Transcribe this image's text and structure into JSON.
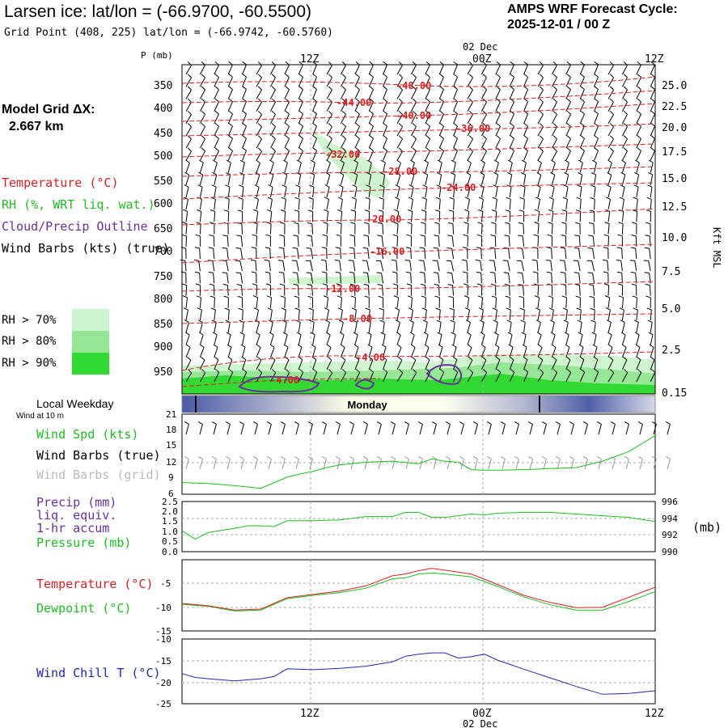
{
  "header": {
    "title": "Larsen ice:  lat/lon = (-66.9700, -60.5500)",
    "grid_point": "Grid Point (408, 225) lat/lon = (-66.9742, -60.5760)",
    "cycle_title": "AMPS WRF Forecast Cycle:",
    "cycle_value": "2025-12-01 / 00  Z"
  },
  "model_grid": {
    "label": "Model Grid ΔX:",
    "value": "2.667 km"
  },
  "legend": {
    "temperature": "Temperature (°C)",
    "rh": "RH (%, WRT liq. wat.)",
    "cloud": "Cloud/Precip Outline",
    "wind_barbs": "Wind Barbs (kts) (true)",
    "rh70": "RH > 70%",
    "rh80": "RH > 80%",
    "rh90": "RH > 90%",
    "local_weekday": "Local Weekday",
    "wind_10m": "Wind at 10 m",
    "wind_spd": "Wind Spd (kts)",
    "barbs_true": "Wind Barbs (true)",
    "barbs_grid": "Wind Barbs (grid)",
    "precip1": "Precip (mm)",
    "precip2": "liq. equiv.",
    "precip3": "1-hr accum",
    "pressure": "Pressure (mb)",
    "temp2": "Temperature (°C)",
    "dewpoint": "Dewpoint (°C)",
    "windchill": "Wind Chill T (°C)",
    "mb": "(mb)"
  },
  "colors": {
    "temperature": "#d62222",
    "rh_line": "#22bb22",
    "cloud": "#6a2f9b",
    "windchill": "#1f2aa8",
    "rh70": "#cff5cf",
    "rh80": "#95e695",
    "rh90": "#33d933"
  },
  "chart_data": [
    {
      "type": "contour",
      "title": "Time-height cross section",
      "y_axis_label": "P (mb)",
      "y_ticks": [
        "350",
        "400",
        "450",
        "500",
        "550",
        "600",
        "650",
        "700",
        "750",
        "800",
        "850",
        "900",
        "950"
      ],
      "right_axis_label": "Kft MSL",
      "right_ticks": [
        "25.0",
        "22.5",
        "20.0",
        "17.5",
        "15.0",
        "12.5",
        "10.0",
        "7.5",
        "5.0",
        "2.5",
        "0.15"
      ],
      "x_ticks_top": [
        "12Z",
        "00Z",
        "12Z"
      ],
      "date_label": "02 Dec",
      "temperature_labels": [
        "-48.00",
        "-44.00",
        "-40.00",
        "-36.00",
        "-32.00",
        "-28.00",
        "-24.00",
        "-20.00",
        "-16.00",
        "-12.00",
        "-8.00",
        "-4.00",
        "-4.00"
      ]
    },
    {
      "type": "bar",
      "title": "Local Weekday",
      "day_label": "Monday"
    },
    {
      "type": "line",
      "title": "Wind at 10 m",
      "y_ticks": [
        "21",
        "18",
        "15",
        "12",
        "9",
        "6"
      ],
      "ylim": [
        6,
        21
      ],
      "series": [
        {
          "name": "Wind Spd (kts)",
          "x": [
            0,
            2,
            4,
            6,
            8,
            9,
            10,
            11,
            12,
            14,
            16,
            18,
            19,
            20,
            21,
            22,
            23,
            24,
            26,
            28,
            30,
            32,
            34,
            36
          ],
          "values": [
            8.2,
            8.0,
            7.6,
            7.1,
            9.2,
            9.8,
            10.3,
            11.0,
            11.5,
            12.0,
            12.2,
            11.7,
            12.6,
            12.2,
            12.0,
            10.6,
            10.5,
            10.5,
            10.6,
            10.8,
            11.0,
            12.2,
            14.0,
            17.0
          ]
        }
      ]
    },
    {
      "type": "line",
      "title": "Precip / Pressure",
      "y_ticks_left": [
        "2.5",
        "2.0",
        "1.5",
        "1.0",
        "0.5",
        "0.0"
      ],
      "y_ticks_right": [
        "996",
        "994",
        "992",
        "990"
      ],
      "ylim_left": [
        0,
        2.5
      ],
      "ylim_right": [
        990,
        996
      ],
      "precip_mm": [],
      "series": [
        {
          "name": "Pressure (mb)",
          "x": [
            0,
            1,
            2,
            4,
            5,
            6,
            7,
            8,
            9,
            10,
            12,
            14,
            15,
            16,
            17,
            18,
            19,
            20,
            21,
            22,
            23,
            24,
            26,
            28,
            30,
            32,
            34,
            36
          ],
          "values": [
            992.5,
            991.5,
            992.3,
            992.8,
            993.1,
            993.1,
            993.0,
            993.7,
            993.7,
            993.7,
            993.8,
            994.2,
            994.2,
            994.2,
            994.7,
            994.7,
            994.1,
            994.1,
            994.3,
            994.5,
            994.4,
            994.6,
            994.7,
            994.7,
            994.5,
            994.3,
            994.1,
            993.6
          ]
        }
      ]
    },
    {
      "type": "line",
      "title": "Temperature / Dewpoint",
      "y_ticks": [
        "-5",
        "-10",
        "-15"
      ],
      "ylim": [
        -15,
        0
      ],
      "series": [
        {
          "name": "Temperature (°C)",
          "x": [
            0,
            2,
            4,
            6,
            8,
            10,
            12,
            14,
            16,
            17,
            18,
            19,
            20,
            22,
            24,
            26,
            28,
            30,
            32,
            34,
            36
          ],
          "values": [
            -9.2,
            -9.7,
            -10.6,
            -10.4,
            -8.0,
            -7.3,
            -6.6,
            -5.5,
            -3.4,
            -3.0,
            -2.3,
            -1.8,
            -2.2,
            -3.0,
            -5.2,
            -7.5,
            -9.0,
            -10.1,
            -10.0,
            -7.9,
            -5.8
          ]
        },
        {
          "name": "Dewpoint (°C)",
          "x": [
            0,
            2,
            4,
            6,
            8,
            10,
            12,
            14,
            16,
            17,
            18,
            19,
            20,
            22,
            24,
            26,
            28,
            30,
            32,
            34,
            36
          ],
          "values": [
            -9.4,
            -9.8,
            -10.8,
            -10.6,
            -8.2,
            -7.5,
            -6.9,
            -6.0,
            -4.0,
            -3.8,
            -3.0,
            -2.8,
            -3.0,
            -3.6,
            -5.6,
            -7.8,
            -9.5,
            -10.6,
            -10.6,
            -8.8,
            -6.7
          ]
        }
      ]
    },
    {
      "type": "line",
      "title": "Wind Chill",
      "y_ticks": [
        "-10",
        "-15",
        "-20",
        "-25"
      ],
      "ylim": [
        -25,
        -10
      ],
      "x_ticks_bottom": [
        "12Z",
        "00Z",
        "12Z"
      ],
      "series": [
        {
          "name": "Wind Chill T (°C)",
          "x": [
            0,
            1,
            2,
            4,
            6,
            7,
            8,
            10,
            12,
            14,
            16,
            17,
            18,
            19,
            20,
            21,
            22,
            23,
            24,
            26,
            28,
            30,
            32,
            34,
            36
          ],
          "values": [
            -18.0,
            -18.9,
            -19.2,
            -19.7,
            -19.2,
            -18.7,
            -16.9,
            -17.1,
            -16.8,
            -16.3,
            -15.3,
            -14.0,
            -13.5,
            -13.2,
            -13.2,
            -14.4,
            -14.1,
            -13.5,
            -14.9,
            -17.0,
            -19.0,
            -21.0,
            -22.8,
            -22.6,
            -22.0
          ]
        }
      ]
    }
  ]
}
